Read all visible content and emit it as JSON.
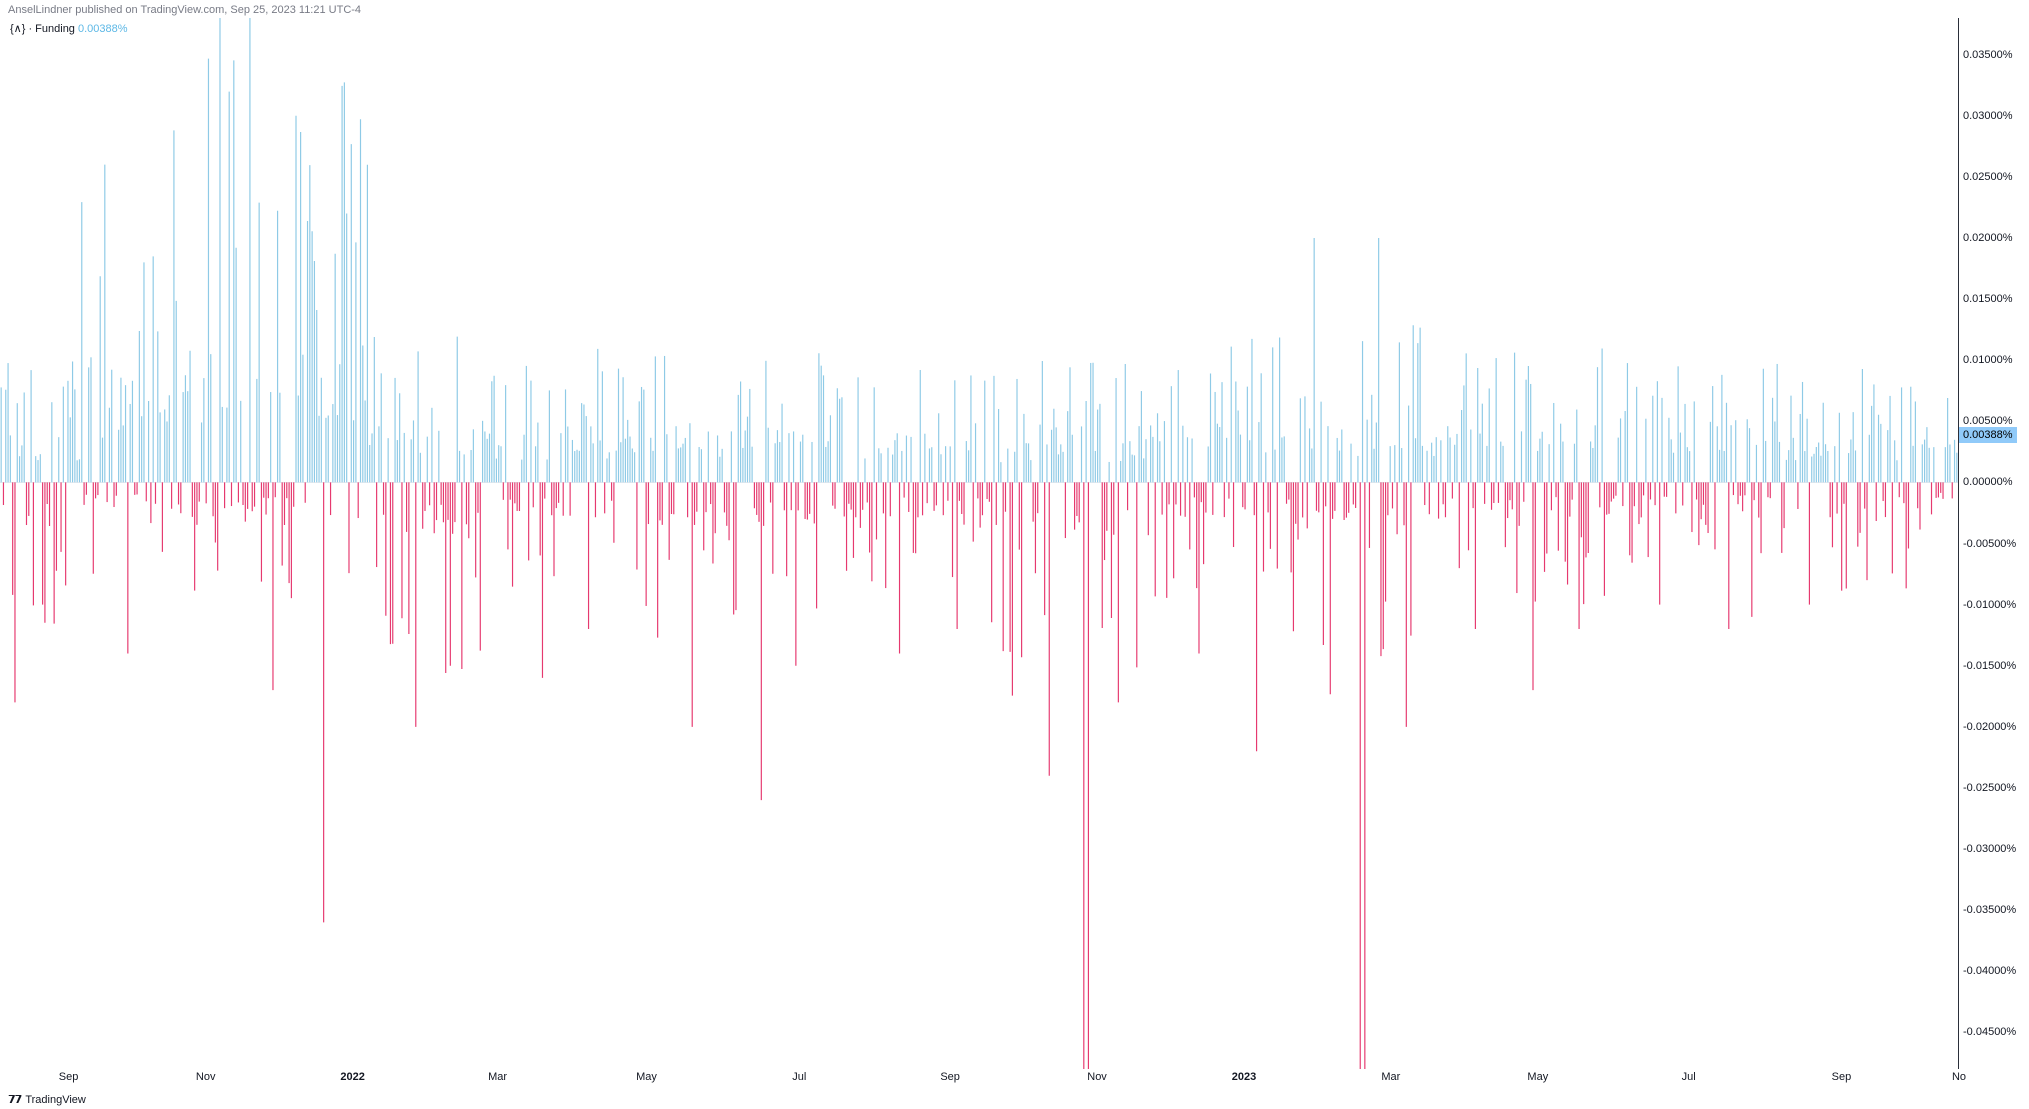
{
  "header": {
    "text": "AnselLindner published on TradingView.com, Sep 25, 2023 11:21 UTC-4"
  },
  "legend": {
    "symbol": "{∧} · Funding",
    "value": "0.00388%"
  },
  "footer": {
    "logo": "𝟳𝟳",
    "text": "TradingView"
  },
  "chart": {
    "type": "oscillator-histogram",
    "y_min": -0.048,
    "y_max": 0.038,
    "positive_color": "#8ecae6",
    "negative_color": "#e6396f",
    "zero_line_color": "#d1d4dc",
    "background": "#ffffff",
    "axis_text_color": "#131722",
    "header_text_color": "#787b86",
    "stroke_width": 0.6,
    "y_ticks": [
      {
        "v": 0.035,
        "label": "0.03500%"
      },
      {
        "v": 0.03,
        "label": "0.03000%"
      },
      {
        "v": 0.025,
        "label": "0.02500%"
      },
      {
        "v": 0.02,
        "label": "0.02000%"
      },
      {
        "v": 0.015,
        "label": "0.01500%"
      },
      {
        "v": 0.01,
        "label": "0.01000%"
      },
      {
        "v": 0.005,
        "label": "0.00500%"
      },
      {
        "v": 0.0,
        "label": "0.00000%"
      },
      {
        "v": -0.005,
        "label": "-0.00500%"
      },
      {
        "v": -0.01,
        "label": "-0.01000%"
      },
      {
        "v": -0.015,
        "label": "-0.01500%"
      },
      {
        "v": -0.02,
        "label": "-0.02000%"
      },
      {
        "v": -0.025,
        "label": "-0.02500%"
      },
      {
        "v": -0.03,
        "label": "-0.03000%"
      },
      {
        "v": -0.035,
        "label": "-0.03500%"
      },
      {
        "v": -0.04,
        "label": "-0.04000%"
      },
      {
        "v": -0.045,
        "label": "-0.04500%"
      }
    ],
    "price_tag": {
      "v": 0.00388,
      "label": "0.00388%",
      "bg": "#90caf9",
      "fg": "#000000"
    },
    "x_ticks": [
      {
        "pos": 0.035,
        "label": "Sep",
        "bold": false
      },
      {
        "pos": 0.105,
        "label": "Nov",
        "bold": false
      },
      {
        "pos": 0.18,
        "label": "2022",
        "bold": true
      },
      {
        "pos": 0.254,
        "label": "Mar",
        "bold": false
      },
      {
        "pos": 0.33,
        "label": "May",
        "bold": false
      },
      {
        "pos": 0.408,
        "label": "Jul",
        "bold": false
      },
      {
        "pos": 0.485,
        "label": "Sep",
        "bold": false
      },
      {
        "pos": 0.56,
        "label": "Nov",
        "bold": false
      },
      {
        "pos": 0.635,
        "label": "2023",
        "bold": true
      },
      {
        "pos": 0.71,
        "label": "Mar",
        "bold": false
      },
      {
        "pos": 0.785,
        "label": "May",
        "bold": false
      },
      {
        "pos": 0.862,
        "label": "Jul",
        "bold": false
      },
      {
        "pos": 0.94,
        "label": "Sep",
        "bold": false
      },
      {
        "pos": 1.0,
        "label": "No",
        "bold": false
      }
    ],
    "n_bars": 850,
    "segments": [
      {
        "start": 0,
        "end": 35,
        "pos_base": 0.006,
        "pos_amp": 0.004,
        "neg_base": -0.005,
        "neg_amp": 0.007,
        "spikes": [
          {
            "i": 6,
            "v": -0.018
          },
          {
            "i": 18,
            "v": -0.01
          }
        ]
      },
      {
        "start": 35,
        "end": 75,
        "pos_base": 0.012,
        "pos_amp": 0.013,
        "neg_base": -0.003,
        "neg_amp": 0.005,
        "spikes": [
          {
            "i": 45,
            "v": 0.026
          },
          {
            "i": 55,
            "v": -0.014
          },
          {
            "i": 62,
            "v": 0.018
          }
        ]
      },
      {
        "start": 75,
        "end": 160,
        "pos_base": 0.015,
        "pos_amp": 0.02,
        "neg_base": -0.004,
        "neg_amp": 0.006,
        "spikes": [
          {
            "i": 95,
            "v": 0.048
          },
          {
            "i": 108,
            "v": 0.048
          },
          {
            "i": 118,
            "v": -0.017
          },
          {
            "i": 128,
            "v": 0.03
          },
          {
            "i": 140,
            "v": -0.036
          },
          {
            "i": 150,
            "v": 0.022
          }
        ]
      },
      {
        "start": 160,
        "end": 210,
        "pos_base": 0.007,
        "pos_amp": 0.006,
        "neg_base": -0.006,
        "neg_amp": 0.01,
        "spikes": [
          {
            "i": 180,
            "v": -0.02
          },
          {
            "i": 195,
            "v": -0.015
          }
        ]
      },
      {
        "start": 210,
        "end": 280,
        "pos_base": 0.006,
        "pos_amp": 0.005,
        "neg_base": -0.004,
        "neg_amp": 0.006,
        "spikes": [
          {
            "i": 235,
            "v": -0.016
          },
          {
            "i": 255,
            "v": -0.012
          }
        ]
      },
      {
        "start": 280,
        "end": 360,
        "pos_base": 0.006,
        "pos_amp": 0.005,
        "neg_base": -0.005,
        "neg_amp": 0.009,
        "spikes": [
          {
            "i": 300,
            "v": -0.02
          },
          {
            "i": 330,
            "v": -0.026
          },
          {
            "i": 345,
            "v": -0.015
          }
        ]
      },
      {
        "start": 360,
        "end": 430,
        "pos_base": 0.006,
        "pos_amp": 0.005,
        "neg_base": -0.004,
        "neg_amp": 0.005,
        "spikes": [
          {
            "i": 390,
            "v": -0.014
          },
          {
            "i": 415,
            "v": -0.012
          }
        ]
      },
      {
        "start": 430,
        "end": 500,
        "pos_base": 0.005,
        "pos_amp": 0.005,
        "neg_base": -0.006,
        "neg_amp": 0.012,
        "spikes": [
          {
            "i": 455,
            "v": -0.024
          },
          {
            "i": 470,
            "v": -0.048
          },
          {
            "i": 472,
            "v": -0.048
          },
          {
            "i": 485,
            "v": -0.018
          }
        ]
      },
      {
        "start": 500,
        "end": 560,
        "pos_base": 0.007,
        "pos_amp": 0.005,
        "neg_base": -0.004,
        "neg_amp": 0.006,
        "spikes": [
          {
            "i": 520,
            "v": -0.014
          },
          {
            "i": 545,
            "v": -0.022
          }
        ]
      },
      {
        "start": 560,
        "end": 620,
        "pos_base": 0.007,
        "pos_amp": 0.006,
        "neg_base": -0.006,
        "neg_amp": 0.012,
        "spikes": [
          {
            "i": 570,
            "v": 0.02
          },
          {
            "i": 590,
            "v": -0.048
          },
          {
            "i": 592,
            "v": -0.048
          },
          {
            "i": 598,
            "v": 0.02
          },
          {
            "i": 610,
            "v": -0.02
          }
        ]
      },
      {
        "start": 620,
        "end": 700,
        "pos_base": 0.007,
        "pos_amp": 0.004,
        "neg_base": -0.004,
        "neg_amp": 0.006,
        "spikes": [
          {
            "i": 640,
            "v": -0.012
          },
          {
            "i": 665,
            "v": -0.017
          },
          {
            "i": 685,
            "v": -0.012
          }
        ]
      },
      {
        "start": 700,
        "end": 770,
        "pos_base": 0.008,
        "pos_amp": 0.003,
        "neg_base": -0.003,
        "neg_amp": 0.004,
        "spikes": [
          {
            "i": 720,
            "v": -0.01
          },
          {
            "i": 750,
            "v": -0.012
          },
          {
            "i": 760,
            "v": -0.011
          }
        ]
      },
      {
        "start": 770,
        "end": 830,
        "pos_base": 0.006,
        "pos_amp": 0.004,
        "neg_base": -0.004,
        "neg_amp": 0.005,
        "spikes": [
          {
            "i": 785,
            "v": -0.01
          },
          {
            "i": 810,
            "v": -0.008
          }
        ]
      },
      {
        "start": 830,
        "end": 850,
        "pos_base": 0.005,
        "pos_amp": 0.003,
        "neg_base": -0.002,
        "neg_amp": 0.002,
        "spikes": []
      }
    ]
  }
}
